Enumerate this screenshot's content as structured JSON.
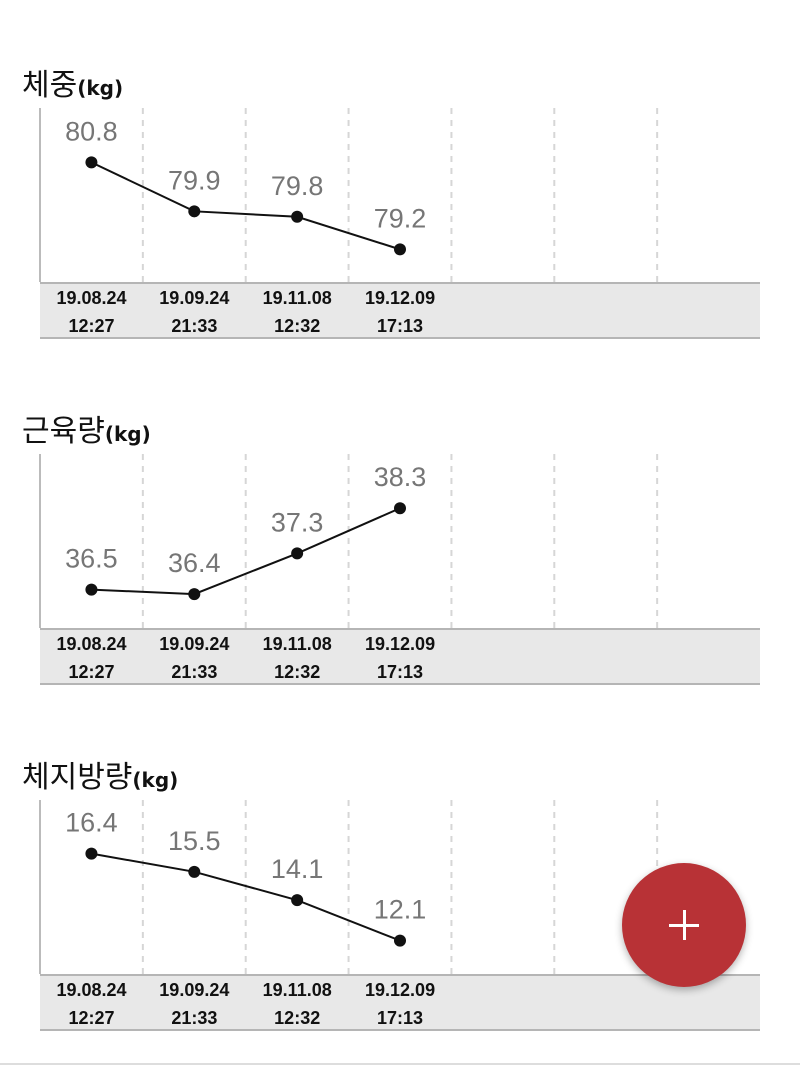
{
  "chart_data": [
    {
      "type": "line",
      "title": "체중",
      "unit": "(kg)",
      "categories": [
        "19.08.24\n12:27",
        "19.09.24\n21:33",
        "19.11.08\n12:32",
        "19.12.09\n17:13"
      ],
      "values": [
        80.8,
        79.9,
        79.8,
        79.2
      ],
      "color": "#111111",
      "ylim": [
        78.6,
        81.8
      ]
    },
    {
      "type": "line",
      "title": "근육량",
      "unit": "(kg)",
      "categories": [
        "19.08.24\n12:27",
        "19.09.24\n21:33",
        "19.11.08\n12:32",
        "19.12.09\n17:13"
      ],
      "values": [
        36.5,
        36.4,
        37.3,
        38.3
      ],
      "color": "#111111",
      "ylim": [
        35.65,
        39.5
      ]
    },
    {
      "type": "line",
      "title": "체지방량",
      "unit": "(kg)",
      "categories": [
        "19.08.24\n12:27",
        "19.09.24\n21:33",
        "19.11.08\n12:32",
        "19.12.09\n17:13"
      ],
      "values": [
        16.4,
        15.5,
        14.1,
        12.1
      ],
      "color": "#111111",
      "ylim": [
        10.45,
        19.05
      ]
    }
  ]
}
